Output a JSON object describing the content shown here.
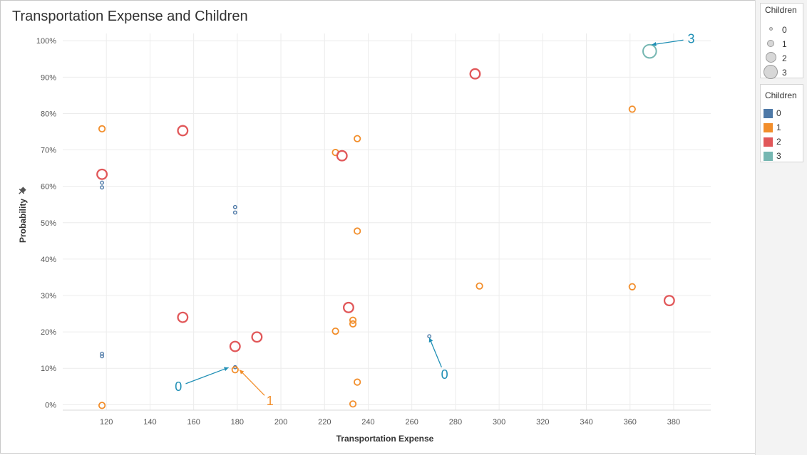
{
  "title": "Transportation Expense and Children",
  "size_legend": {
    "title": "Children",
    "items": [
      {
        "label": "0",
        "size_rank": 0
      },
      {
        "label": "1",
        "size_rank": 1
      },
      {
        "label": "2",
        "size_rank": 2
      },
      {
        "label": "3",
        "size_rank": 3
      }
    ]
  },
  "color_legend": {
    "title": "Children",
    "items": [
      {
        "label": "0",
        "color": "#4e79a7"
      },
      {
        "label": "1",
        "color": "#f28e2b"
      },
      {
        "label": "2",
        "color": "#e15759"
      },
      {
        "label": "3",
        "color": "#76b7b2"
      }
    ]
  },
  "chart_data": {
    "type": "scatter",
    "title": "Transportation Expense and Children",
    "xlabel": "Transportation Expense",
    "ylabel": "Probability",
    "xlim": [
      100,
      397
    ],
    "ylim": [
      -1.5,
      102
    ],
    "x_ticks": [
      120,
      140,
      160,
      180,
      200,
      220,
      240,
      260,
      280,
      300,
      320,
      340,
      360,
      380
    ],
    "y_ticks": [
      0,
      10,
      20,
      30,
      40,
      50,
      60,
      70,
      80,
      90,
      100
    ],
    "y_tick_labels": [
      "0%",
      "10%",
      "20%",
      "30%",
      "40%",
      "50%",
      "60%",
      "70%",
      "80%",
      "90%",
      "100%"
    ],
    "grid": true,
    "marker": "hollow circle",
    "series": [
      {
        "name": "0",
        "color": "#4e79a7",
        "points": [
          [
            118,
            61
          ],
          [
            118,
            59.7
          ],
          [
            118,
            14
          ],
          [
            118,
            13.3
          ],
          [
            179,
            54.3
          ],
          [
            179,
            52.8
          ],
          [
            179,
            10.3
          ],
          [
            268,
            18.8
          ]
        ]
      },
      {
        "name": "1",
        "color": "#f28e2b",
        "points": [
          [
            118,
            75.8
          ],
          [
            118,
            -0.2
          ],
          [
            179,
            9.6
          ],
          [
            225,
            69.3
          ],
          [
            235,
            73.1
          ],
          [
            235,
            47.7
          ],
          [
            225,
            20.2
          ],
          [
            233,
            23.2
          ],
          [
            233,
            22.2
          ],
          [
            235,
            6.2
          ],
          [
            233,
            0.2
          ],
          [
            291,
            32.6
          ],
          [
            361,
            81.2
          ],
          [
            361,
            32.4
          ]
        ]
      },
      {
        "name": "2",
        "color": "#e15759",
        "points": [
          [
            118,
            63.3
          ],
          [
            155,
            75.3
          ],
          [
            228,
            68.4
          ],
          [
            289,
            90.9
          ],
          [
            155,
            24
          ],
          [
            231,
            26.7
          ],
          [
            189,
            18.6
          ],
          [
            179,
            16
          ],
          [
            378,
            28.6
          ]
        ]
      },
      {
        "name": "3",
        "color": "#76b7b2",
        "points": [
          [
            369,
            97.1
          ]
        ]
      }
    ],
    "annotations": [
      {
        "text": "3",
        "color": "#1f8fb5",
        "text_at": [
          388,
          100.5
        ],
        "arrow_to": [
          370,
          98.9
        ]
      },
      {
        "text": "0",
        "color": "#1f8fb5",
        "text_at": [
          275,
          8.3
        ],
        "arrow_to": [
          268,
          18.4
        ]
      },
      {
        "text": "0",
        "color": "#1f8fb5",
        "text_at": [
          153,
          5
        ],
        "arrow_to": [
          176,
          10.2
        ]
      },
      {
        "text": "1",
        "color": "#f28e2b",
        "text_at": [
          195,
          1
        ],
        "arrow_to": [
          181,
          9.6
        ]
      }
    ]
  }
}
